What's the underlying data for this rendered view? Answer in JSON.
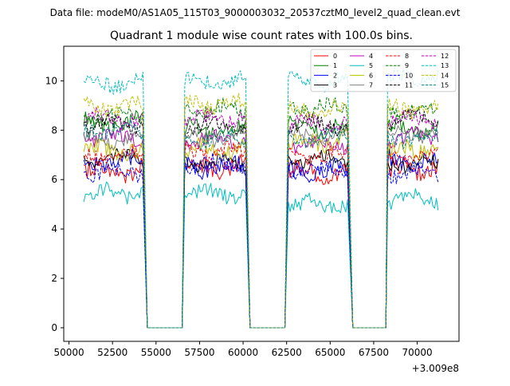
{
  "suptitle": "Data file: modeM0/AS1A05_115T03_9000003032_20537cztM0_level2_quad_clean.evt",
  "chart_data": {
    "type": "line",
    "title": "Quadrant 1 module wise count rates with 100.0s bins.",
    "xlabel": "",
    "ylabel": "",
    "x_offset_label": "+3.009e8",
    "xlim": [
      49700,
      72400
    ],
    "ylim": [
      -0.55,
      11.4
    ],
    "xticks": [
      50000,
      52500,
      55000,
      57500,
      60000,
      62500,
      65000,
      67500,
      70000
    ],
    "xtick_labels": [
      "50000",
      "52500",
      "55000",
      "57500",
      "60000",
      "62500",
      "65000",
      "67500",
      "70000"
    ],
    "yticks": [
      0,
      2,
      4,
      6,
      8,
      10
    ],
    "ytick_labels": [
      "0",
      "2",
      "4",
      "6",
      "8",
      "10"
    ],
    "bin_seconds": 100,
    "gap_value": 0,
    "segments": [
      [
        50850,
        54250
      ],
      [
        56650,
        60150
      ],
      [
        62600,
        66050
      ],
      [
        68300,
        71200
      ]
    ],
    "gaps": [
      [
        54500,
        56500
      ],
      [
        60400,
        62400
      ],
      [
        66300,
        68200
      ]
    ],
    "legend_position": "top-right",
    "legend_ncol": 4,
    "series": [
      {
        "name": "0",
        "color": "#ff0000",
        "dashed": false,
        "level": 6.3,
        "jitter": 0.4
      },
      {
        "name": "1",
        "color": "#008000",
        "dashed": false,
        "level": 8.2,
        "jitter": 0.35
      },
      {
        "name": "2",
        "color": "#0000ff",
        "dashed": false,
        "level": 6.6,
        "jitter": 0.35
      },
      {
        "name": "3",
        "color": "#000000",
        "dashed": false,
        "level": 6.7,
        "jitter": 0.25
      },
      {
        "name": "4",
        "color": "#bf00bf",
        "dashed": false,
        "level": 7.5,
        "jitter": 0.3
      },
      {
        "name": "5",
        "color": "#00bfbf",
        "dashed": false,
        "level": 5.2,
        "jitter": 0.3
      },
      {
        "name": "6",
        "color": "#bfbf00",
        "dashed": false,
        "level": 7.4,
        "jitter": 0.35
      },
      {
        "name": "7",
        "color": "#808080",
        "dashed": false,
        "level": 7.8,
        "jitter": 0.25
      },
      {
        "name": "8",
        "color": "#ff0000",
        "dashed": true,
        "level": 7.1,
        "jitter": 0.3
      },
      {
        "name": "9",
        "color": "#008000",
        "dashed": true,
        "level": 8.7,
        "jitter": 0.3
      },
      {
        "name": "10",
        "color": "#0000ff",
        "dashed": true,
        "level": 6.4,
        "jitter": 0.3
      },
      {
        "name": "11",
        "color": "#000000",
        "dashed": true,
        "level": 8.3,
        "jitter": 0.3
      },
      {
        "name": "12",
        "color": "#bf00bf",
        "dashed": true,
        "level": 8.5,
        "jitter": 0.3
      },
      {
        "name": "13",
        "color": "#00bfbf",
        "dashed": true,
        "level": 9.9,
        "jitter": 0.3
      },
      {
        "name": "14",
        "color": "#bfbf00",
        "dashed": true,
        "level": 8.9,
        "jitter": 0.3
      },
      {
        "name": "15",
        "color": "#008080",
        "dashed": true,
        "level": 7.9,
        "jitter": 0.3
      }
    ]
  }
}
